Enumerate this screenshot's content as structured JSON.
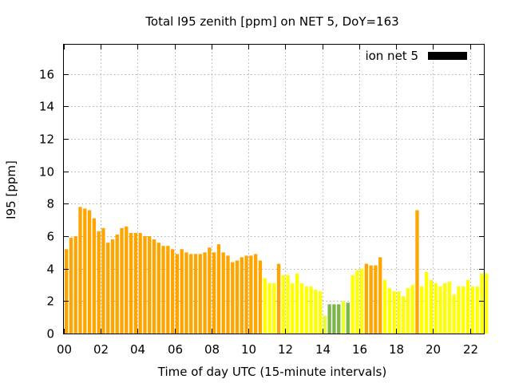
{
  "chart_data": {
    "type": "bar",
    "title": "Total I95 zenith [ppm] on NET 5, DoY=163",
    "xlabel": "Time of day UTC (15-minute intervals)",
    "ylabel": "I95 [ppm]",
    "xlim": [
      0,
      22.75
    ],
    "ylim": [
      0,
      17.8
    ],
    "x_ticks": [
      "00",
      "02",
      "04",
      "06",
      "08",
      "10",
      "12",
      "14",
      "16",
      "18",
      "20",
      "22"
    ],
    "y_ticks": [
      "0",
      "2",
      "4",
      "6",
      "8",
      "10",
      "12",
      "14",
      "16"
    ],
    "grid": true,
    "legend_position": "top-right",
    "legend": [
      {
        "name": "ion net 5",
        "color": "#000000"
      }
    ],
    "bar_colors": {
      "orange": "#ffa500",
      "yellow": "#ffff00",
      "lime": "#e6ff30",
      "green": "#7ab648"
    },
    "bar_interval_hours": 0.25,
    "values": [
      5.2,
      5.9,
      6.0,
      7.8,
      7.7,
      7.6,
      7.1,
      6.3,
      6.5,
      5.6,
      5.8,
      6.1,
      6.5,
      6.6,
      6.2,
      6.2,
      6.2,
      6.0,
      6.0,
      5.8,
      5.6,
      5.4,
      5.4,
      5.2,
      4.9,
      5.2,
      5.0,
      4.9,
      4.9,
      4.9,
      5.0,
      5.3,
      5.0,
      5.5,
      5.0,
      4.8,
      4.4,
      4.5,
      4.7,
      4.8,
      4.8,
      4.9,
      4.5,
      3.4,
      3.1,
      3.1,
      4.3,
      3.6,
      3.6,
      3.1,
      3.7,
      3.1,
      2.9,
      2.9,
      2.7,
      2.6,
      1.1,
      1.8,
      1.8,
      1.8,
      2.0,
      1.9,
      3.6,
      3.9,
      4.0,
      4.3,
      4.2,
      4.2,
      4.7,
      3.3,
      2.8,
      2.6,
      2.6,
      2.3,
      2.8,
      3.0,
      7.6,
      2.9,
      3.8,
      3.3,
      3.1,
      2.9,
      3.1,
      3.2,
      2.4,
      2.9,
      2.9,
      3.3,
      2.9,
      2.9,
      3.7,
      3.7
    ],
    "colors": [
      "orange",
      "orange",
      "orange",
      "orange",
      "orange",
      "orange",
      "orange",
      "orange",
      "orange",
      "orange",
      "orange",
      "orange",
      "orange",
      "orange",
      "orange",
      "orange",
      "orange",
      "orange",
      "orange",
      "orange",
      "orange",
      "orange",
      "orange",
      "orange",
      "orange",
      "orange",
      "orange",
      "orange",
      "orange",
      "orange",
      "orange",
      "orange",
      "orange",
      "orange",
      "orange",
      "orange",
      "orange",
      "orange",
      "orange",
      "orange",
      "orange",
      "orange",
      "orange",
      "yellow",
      "yellow",
      "yellow",
      "orange",
      "yellow",
      "yellow",
      "yellow",
      "yellow",
      "yellow",
      "yellow",
      "yellow",
      "yellow",
      "yellow",
      "lime",
      "green",
      "green",
      "green",
      "lime",
      "green",
      "yellow",
      "yellow",
      "yellow",
      "orange",
      "orange",
      "orange",
      "orange",
      "yellow",
      "yellow",
      "yellow",
      "yellow",
      "yellow",
      "yellow",
      "yellow",
      "orange",
      "yellow",
      "yellow",
      "yellow",
      "yellow",
      "yellow",
      "yellow",
      "yellow",
      "yellow",
      "yellow",
      "yellow",
      "yellow",
      "yellow",
      "yellow",
      "yellow",
      "yellow"
    ]
  }
}
